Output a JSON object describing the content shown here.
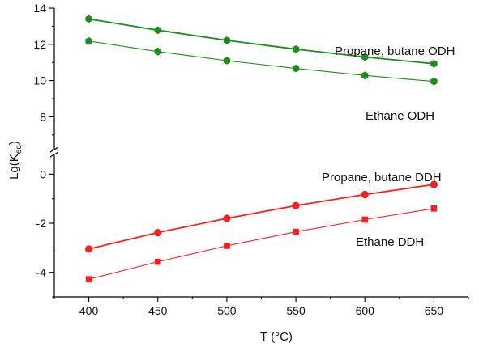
{
  "chart_data": {
    "type": "line",
    "xlabel": "T (°C)",
    "ylabel_main": "Lg(K",
    "ylabel_sub": "eq",
    "ylabel_close": ")",
    "x": [
      400,
      450,
      500,
      550,
      600,
      650
    ],
    "xlim": [
      375,
      675
    ],
    "y_upper_range": [
      6.5,
      14
    ],
    "y_lower_range": [
      -5,
      1.1
    ],
    "y_upper_ticks": [
      8,
      10,
      12,
      14
    ],
    "y_lower_ticks": [
      -4,
      -2,
      0
    ],
    "axis_break": true,
    "series": [
      {
        "name": "Propane, butane ODH",
        "values": [
          13.4,
          12.78,
          12.22,
          11.73,
          11.3,
          10.93
        ],
        "color": "#1e8c1e",
        "marker": "hexagon"
      },
      {
        "name": "Ethane ODH",
        "values": [
          12.18,
          11.6,
          11.1,
          10.67,
          10.28,
          9.95
        ],
        "color": "#1e8c1e",
        "marker": "hexagon"
      },
      {
        "name": "Propane, butane DDH",
        "values": [
          -3.05,
          -2.38,
          -1.8,
          -1.28,
          -0.83,
          -0.42
        ],
        "color": "#ff1f1f",
        "marker": "circle"
      },
      {
        "name": "Ethane DDH",
        "values": [
          -4.28,
          -3.57,
          -2.92,
          -2.35,
          -1.85,
          -1.4
        ],
        "color": "#ff1f1f",
        "marker": "square"
      }
    ]
  }
}
